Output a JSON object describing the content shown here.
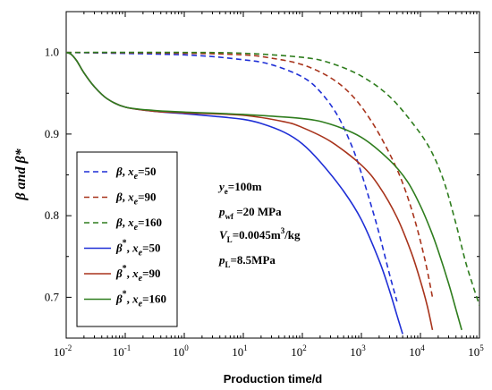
{
  "chart_data": {
    "type": "line",
    "xlabel": "Production time/d",
    "ylabel": "β and β*",
    "xscale": "log",
    "xlim": [
      0.01,
      100000
    ],
    "ylim": [
      0.65,
      1.05
    ],
    "x_ticks": [
      {
        "base": "10",
        "exp": "-2",
        "value": 0.01
      },
      {
        "base": "10",
        "exp": "-1",
        "value": 0.1
      },
      {
        "base": "10",
        "exp": "0",
        "value": 1
      },
      {
        "base": "10",
        "exp": "1",
        "value": 10
      },
      {
        "base": "10",
        "exp": "2",
        "value": 100
      },
      {
        "base": "10",
        "exp": "3",
        "value": 1000
      },
      {
        "base": "10",
        "exp": "4",
        "value": 10000
      },
      {
        "base": "10",
        "exp": "5",
        "value": 100000
      }
    ],
    "y_ticks": [
      {
        "label": "0.7",
        "value": 0.7
      },
      {
        "label": "0.8",
        "value": 0.8
      },
      {
        "label": "0.9",
        "value": 0.9
      },
      {
        "label": "1.0",
        "value": 1.0
      }
    ],
    "legend_position": "left",
    "series": [
      {
        "legend_main": "β",
        "legend_star": "",
        "legend_var": "x",
        "legend_sub": "e",
        "legend_val": "=50",
        "color": "#1f2fd6",
        "dash": true,
        "x": [
          0.01,
          1,
          10,
          30,
          100,
          200,
          400,
          700,
          1000,
          1500,
          2000,
          3000,
          4000
        ],
        "y": [
          1.0,
          0.997,
          0.991,
          0.985,
          0.97,
          0.952,
          0.922,
          0.884,
          0.852,
          0.81,
          0.778,
          0.728,
          0.695
        ]
      },
      {
        "legend_main": "β",
        "legend_star": "",
        "legend_var": "x",
        "legend_sub": "e",
        "legend_val": "=90",
        "color": "#a8341c",
        "dash": true,
        "x": [
          0.01,
          1,
          10,
          30,
          100,
          300,
          700,
          1500,
          3000,
          5000,
          8000,
          12000,
          16000
        ],
        "y": [
          1.0,
          0.999,
          0.997,
          0.993,
          0.985,
          0.969,
          0.947,
          0.915,
          0.876,
          0.84,
          0.795,
          0.745,
          0.7
        ]
      },
      {
        "legend_main": "β",
        "legend_star": "",
        "legend_var": "x",
        "legend_sub": "e",
        "legend_val": "=160",
        "color": "#2f7d1e",
        "dash": true,
        "x": [
          0.01,
          1,
          10,
          100,
          300,
          1000,
          3000,
          8000,
          15000,
          25000,
          40000,
          60000,
          100000
        ],
        "y": [
          1.0,
          1.0,
          0.999,
          0.994,
          0.987,
          0.971,
          0.946,
          0.91,
          0.88,
          0.842,
          0.79,
          0.74,
          0.69
        ]
      },
      {
        "legend_main": "β",
        "legend_star": "*",
        "legend_var": "x",
        "legend_sub": "e",
        "legend_val": "=50",
        "color": "#1f2fd6",
        "dash": false,
        "x": [
          0.01,
          0.012,
          0.015,
          0.02,
          0.03,
          0.05,
          0.1,
          0.3,
          1,
          3,
          10,
          20,
          50,
          100,
          200,
          500,
          1000,
          2000,
          3000,
          4000,
          5000
        ],
        "y": [
          1.0,
          0.998,
          0.99,
          0.975,
          0.958,
          0.943,
          0.933,
          0.928,
          0.925,
          0.922,
          0.918,
          0.913,
          0.902,
          0.888,
          0.866,
          0.83,
          0.795,
          0.745,
          0.708,
          0.678,
          0.655
        ]
      },
      {
        "legend_main": "β",
        "legend_star": "*",
        "legend_var": "x",
        "legend_sub": "e",
        "legend_val": "=90",
        "color": "#a8341c",
        "dash": false,
        "x": [
          0.01,
          0.012,
          0.015,
          0.02,
          0.03,
          0.05,
          0.1,
          0.3,
          1,
          10,
          50,
          100,
          300,
          1000,
          2000,
          4000,
          7000,
          10000,
          13000,
          16000
        ],
        "y": [
          1.0,
          0.998,
          0.99,
          0.975,
          0.958,
          0.943,
          0.933,
          0.928,
          0.926,
          0.923,
          0.915,
          0.908,
          0.891,
          0.862,
          0.836,
          0.798,
          0.755,
          0.72,
          0.69,
          0.66
        ]
      },
      {
        "legend_main": "β",
        "legend_star": "*",
        "legend_var": "x",
        "legend_sub": "e",
        "legend_val": "=160",
        "color": "#2f7d1e",
        "dash": false,
        "x": [
          0.01,
          0.012,
          0.015,
          0.02,
          0.03,
          0.05,
          0.1,
          0.3,
          1,
          10,
          100,
          300,
          1000,
          3000,
          6000,
          10000,
          15000,
          20000,
          30000,
          40000,
          50000
        ],
        "y": [
          1.0,
          0.998,
          0.99,
          0.975,
          0.958,
          0.943,
          0.933,
          0.929,
          0.927,
          0.924,
          0.919,
          0.912,
          0.896,
          0.868,
          0.842,
          0.812,
          0.782,
          0.757,
          0.717,
          0.685,
          0.66
        ]
      }
    ],
    "annotation": {
      "ye_var": "y",
      "ye_sub": "e",
      "ye_val": "=100m",
      "pwf_var": "p",
      "pwf_sub": "wf",
      "pwf_val": " =20 MPa",
      "vl_var": "V",
      "vl_sub": "L",
      "vl_val": "=0.0045m",
      "vl_sup": "3",
      "vl_unit": "/kg",
      "pl_var": "p",
      "pl_sub": "L",
      "pl_val": "=8.5MPa"
    }
  }
}
